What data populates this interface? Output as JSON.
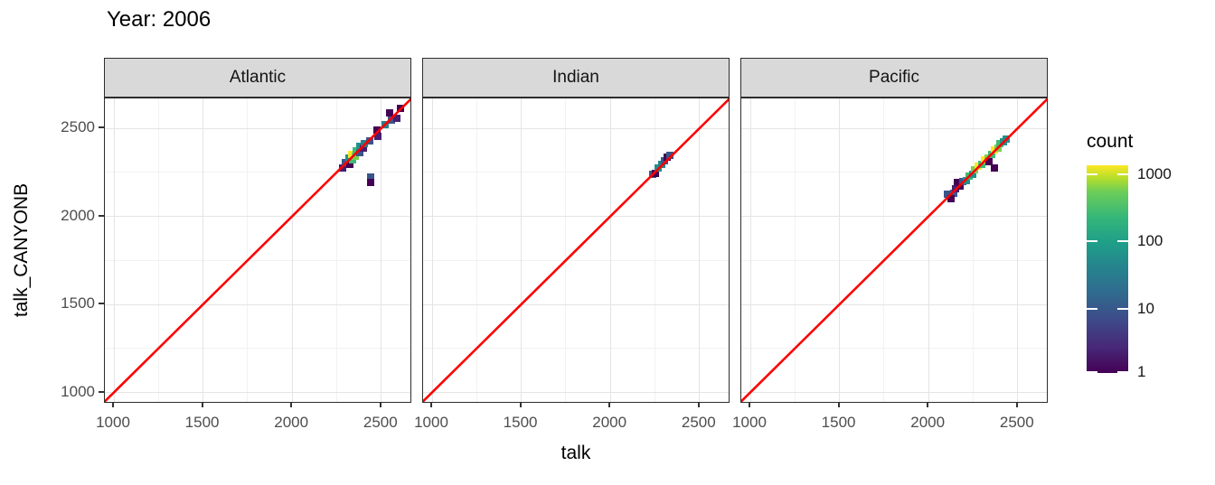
{
  "title": "Year: 2006",
  "chart_data": {
    "type": "heatmap",
    "subtype": "faceted_bin2d_scatter_comparison",
    "title": "Year: 2006",
    "xlabel": "talk",
    "ylabel": "talk_CANYONB",
    "x_range": [
      940,
      2670
    ],
    "y_range": [
      935,
      2670
    ],
    "x_ticks": [
      1000,
      1500,
      2000,
      2500
    ],
    "y_ticks": [
      2500,
      2000,
      1500,
      1000
    ],
    "grid": true,
    "reference_line": {
      "type": "identity y=x",
      "color": "#ff0000"
    },
    "legend": {
      "title": "count",
      "scale": "log10",
      "ticks": [
        1000,
        100,
        10,
        1
      ],
      "tick_labels": [
        "1000",
        "100",
        "10",
        "1"
      ],
      "palette": "viridis",
      "position": "right",
      "range": [
        1,
        1000
      ]
    },
    "facets": [
      {
        "label": "Atlantic",
        "tiles": [
          [
            2285,
            2275,
            2
          ],
          [
            2300,
            2305,
            8
          ],
          [
            2325,
            2295,
            1
          ],
          [
            2320,
            2330,
            50
          ],
          [
            2340,
            2320,
            200
          ],
          [
            2335,
            2350,
            1000
          ],
          [
            2355,
            2340,
            450
          ],
          [
            2360,
            2370,
            200
          ],
          [
            2380,
            2360,
            8
          ],
          [
            2380,
            2395,
            50
          ],
          [
            2400,
            2385,
            2
          ],
          [
            2405,
            2415,
            30
          ],
          [
            2435,
            2430,
            8
          ],
          [
            2440,
            2225,
            8
          ],
          [
            2440,
            2190,
            1
          ],
          [
            2475,
            2490,
            1
          ],
          [
            2480,
            2455,
            2
          ],
          [
            2520,
            2520,
            30
          ],
          [
            2555,
            2545,
            8
          ],
          [
            2545,
            2585,
            1
          ],
          [
            2585,
            2555,
            2
          ],
          [
            2610,
            2615,
            1
          ]
        ]
      },
      {
        "label": "Indian",
        "tiles": [
          [
            2235,
            2240,
            8
          ],
          [
            2255,
            2245,
            1
          ],
          [
            2270,
            2275,
            50
          ],
          [
            2290,
            2295,
            30
          ],
          [
            2305,
            2315,
            8
          ],
          [
            2320,
            2335,
            1
          ],
          [
            2335,
            2345,
            8
          ]
        ]
      },
      {
        "label": "Pacific",
        "tiles": [
          [
            2105,
            2125,
            8
          ],
          [
            2140,
            2130,
            8
          ],
          [
            2125,
            2100,
            1
          ],
          [
            2160,
            2190,
            1
          ],
          [
            2150,
            2155,
            2
          ],
          [
            2175,
            2170,
            1
          ],
          [
            2190,
            2195,
            8
          ],
          [
            2210,
            2205,
            50
          ],
          [
            2225,
            2230,
            200
          ],
          [
            2245,
            2240,
            50
          ],
          [
            2260,
            2265,
            450
          ],
          [
            2280,
            2285,
            1000
          ],
          [
            2300,
            2295,
            200
          ],
          [
            2315,
            2320,
            1000
          ],
          [
            2335,
            2330,
            450
          ],
          [
            2355,
            2350,
            200
          ],
          [
            2370,
            2375,
            1000
          ],
          [
            2390,
            2385,
            450
          ],
          [
            2400,
            2415,
            200
          ],
          [
            2420,
            2425,
            50
          ],
          [
            2435,
            2440,
            50
          ],
          [
            2340,
            2310,
            1
          ],
          [
            2370,
            2275,
            1
          ]
        ]
      }
    ]
  },
  "colors": {
    "reference_line": "#ff0000",
    "strip_fill": "#d9d9d9",
    "panel_border": "#2d2d2d",
    "grid_major": "#e4e4e4",
    "grid_minor": "#f2f2f2",
    "tick_text": "#4d4d4d",
    "viridis_low": "#440154",
    "viridis_high": "#fde725"
  }
}
